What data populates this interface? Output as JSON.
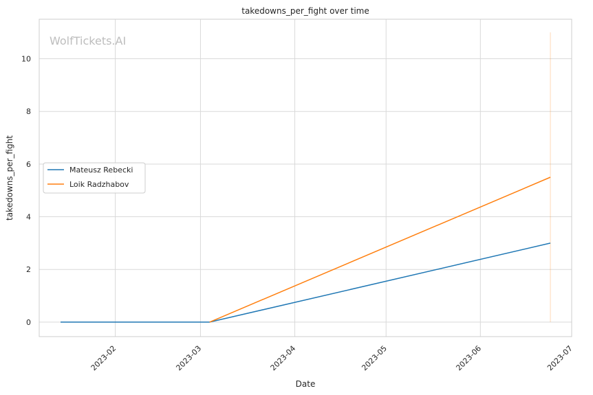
{
  "chart_data": {
    "type": "line",
    "title": "takedowns_per_fight over time",
    "xlabel": "Date",
    "ylabel": "takedowns_per_fight",
    "watermark": "WolfTickets.AI",
    "xlim": [
      "2023-01-07",
      "2023-07-01"
    ],
    "ylim": [
      -0.55,
      11.5
    ],
    "x_ticks": [
      "2023-02-01",
      "2023-03-01",
      "2023-04-01",
      "2023-05-01",
      "2023-06-01",
      "2023-07-01"
    ],
    "x_tick_labels": [
      "2023-02",
      "2023-03",
      "2023-04",
      "2023-05",
      "2023-06",
      "2023-07"
    ],
    "y_ticks": [
      0,
      2,
      4,
      6,
      8,
      10
    ],
    "y_tick_labels": [
      "0",
      "2",
      "4",
      "6",
      "8",
      "10"
    ],
    "grid": true,
    "legend": "center-left",
    "vline": {
      "x": "2023-06-24",
      "y_range": [
        0,
        11
      ],
      "color": "#ff7f0e"
    },
    "series": [
      {
        "name": "Mateusz Rebecki",
        "color": "#1f77b4",
        "points": [
          {
            "x": "2023-01-14",
            "y": 0
          },
          {
            "x": "2023-03-04",
            "y": 0
          },
          {
            "x": "2023-06-24",
            "y": 3
          }
        ]
      },
      {
        "name": "Loik Radzhabov",
        "color": "#ff7f0e",
        "points": [
          {
            "x": "2023-03-04",
            "y": 0
          },
          {
            "x": "2023-06-24",
            "y": 5.5
          }
        ]
      }
    ]
  }
}
